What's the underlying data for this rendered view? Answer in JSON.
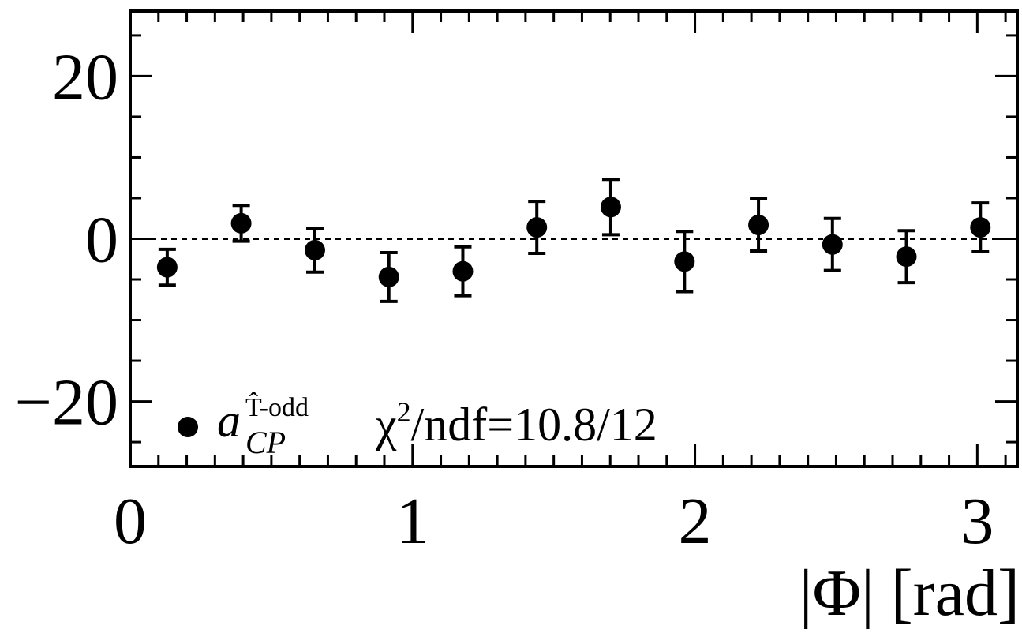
{
  "chart_data": {
    "type": "scatter",
    "xlabel": "|Φ| [rad]",
    "ylabel": "",
    "xlim": [
      0,
      3.14159
    ],
    "ylim": [
      -28,
      28
    ],
    "x_ticks": [
      0,
      1,
      2,
      3
    ],
    "x_tick_labels": [
      "0",
      "1",
      "2",
      "3"
    ],
    "y_ticks": [
      -20,
      0,
      20
    ],
    "y_tick_labels": [
      "−20",
      "0",
      "20"
    ],
    "reference_line": 0,
    "series": [
      {
        "legend_symbol": "a",
        "legend_subscript": "CP",
        "legend_superscript": "T̂-odd",
        "x": [
          0.131,
          0.393,
          0.654,
          0.916,
          1.178,
          1.44,
          1.702,
          1.963,
          2.225,
          2.487,
          2.749,
          3.011
        ],
        "y": [
          -3.5,
          1.9,
          -1.4,
          -4.7,
          -4.0,
          1.4,
          3.9,
          -2.8,
          1.7,
          -0.7,
          -2.2,
          1.4
        ],
        "yerr": [
          2.2,
          2.2,
          2.7,
          3.0,
          3.0,
          3.2,
          3.4,
          3.7,
          3.2,
          3.2,
          3.2,
          3.0
        ]
      }
    ],
    "annotation": "χ²/ndf=10.8/12",
    "grid": false
  },
  "text": {
    "legend_symbol": "a",
    "legend_sup": "T̂-odd",
    "legend_sub": "CP",
    "chi_symbol": "χ",
    "chi_exp": "2",
    "chi_rest": "/ndf=10.8/12",
    "x_title": "|Φ| [rad]"
  }
}
